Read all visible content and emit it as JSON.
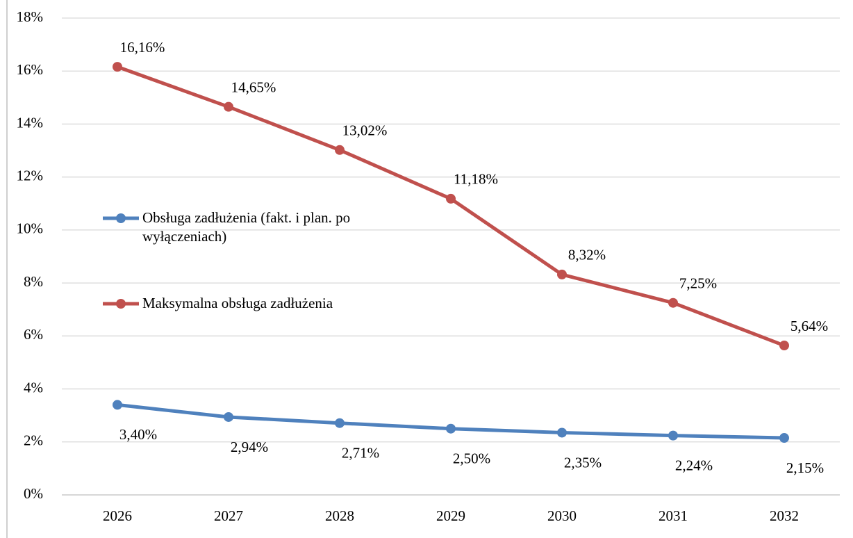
{
  "chart_data": {
    "type": "line",
    "categories": [
      "2026",
      "2027",
      "2028",
      "2029",
      "2030",
      "2031",
      "2032"
    ],
    "series": [
      {
        "name": "Obsługa zadłużenia (fakt. i plan. po wyłączeniach)",
        "color": "#4f81bd",
        "values": [
          3.4,
          2.94,
          2.71,
          2.5,
          2.35,
          2.24,
          2.15
        ],
        "value_labels": [
          "3,40%",
          "2,94%",
          "2,71%",
          "2,50%",
          "2,35%",
          "2,24%",
          "2,15%"
        ]
      },
      {
        "name": "Maksymalna obsługa zadłużenia",
        "color": "#c0504d",
        "values": [
          16.16,
          14.65,
          13.02,
          11.18,
          8.32,
          7.25,
          5.64
        ],
        "value_labels": [
          "16,16%",
          "14,65%",
          "13,02%",
          "11,18%",
          "8,32%",
          "7,25%",
          "5,64%"
        ]
      }
    ],
    "ylim": [
      0,
      18
    ],
    "yticks": [
      {
        "value": 0,
        "label": "0%"
      },
      {
        "value": 2,
        "label": "2%"
      },
      {
        "value": 4,
        "label": "4%"
      },
      {
        "value": 6,
        "label": "6%"
      },
      {
        "value": 8,
        "label": "8%"
      },
      {
        "value": 10,
        "label": "10%"
      },
      {
        "value": 12,
        "label": "12%"
      },
      {
        "value": 14,
        "label": "14%"
      },
      {
        "value": 16,
        "label": "16%"
      },
      {
        "value": 18,
        "label": "18%"
      }
    ],
    "grid": true,
    "legend": "left"
  }
}
